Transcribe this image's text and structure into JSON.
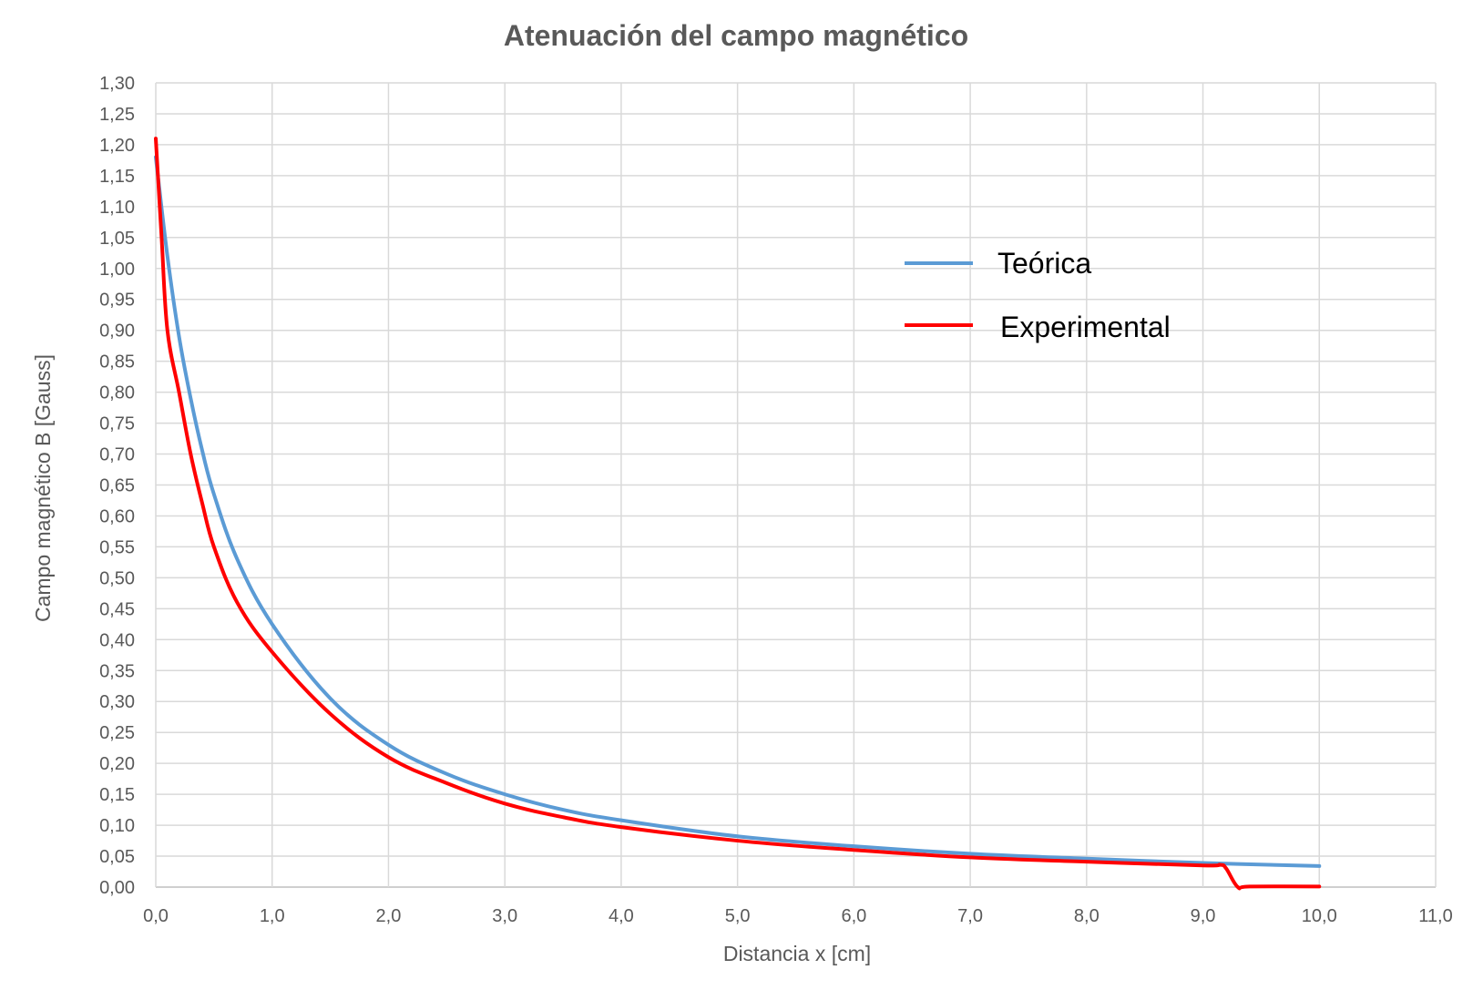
{
  "chart_data": {
    "type": "line",
    "title": "Atenuación del campo magnético",
    "xlabel": "Distancia x [cm]",
    "ylabel": "Campo magnético B [Gauss]",
    "xlim": [
      0,
      11
    ],
    "ylim": [
      0,
      1.3
    ],
    "x_ticks": [
      "0,0",
      "1,0",
      "2,0",
      "3,0",
      "4,0",
      "5,0",
      "6,0",
      "7,0",
      "8,0",
      "9,0",
      "10,0",
      "11,0"
    ],
    "y_ticks": [
      "0,00",
      "0,05",
      "0,10",
      "0,15",
      "0,20",
      "0,25",
      "0,30",
      "0,35",
      "0,40",
      "0,45",
      "0,50",
      "0,55",
      "0,60",
      "0,65",
      "0,70",
      "0,75",
      "0,80",
      "0,85",
      "0,90",
      "0,95",
      "1,00",
      "1,05",
      "1,10",
      "1,15",
      "1,20",
      "1,25",
      "1,30"
    ],
    "grid": true,
    "legend_position": "top-right",
    "series": [
      {
        "name": "Teórica",
        "color": "#5b9bd5",
        "x": [
          0.0,
          0.1,
          0.2,
          0.3,
          0.4,
          0.5,
          0.7,
          1.0,
          1.5,
          2.0,
          2.5,
          3.0,
          3.5,
          4.0,
          5.0,
          6.0,
          7.0,
          8.0,
          9.0,
          10.0
        ],
        "y": [
          1.18,
          1.02,
          0.89,
          0.79,
          0.705,
          0.635,
          0.53,
          0.425,
          0.305,
          0.23,
          0.183,
          0.15,
          0.125,
          0.108,
          0.082,
          0.066,
          0.054,
          0.046,
          0.039,
          0.034
        ]
      },
      {
        "name": "Experimental",
        "color": "#ff0000",
        "x": [
          0.0,
          0.05,
          0.1,
          0.2,
          0.3,
          0.4,
          0.5,
          0.7,
          1.0,
          1.5,
          2.0,
          2.5,
          3.0,
          3.5,
          4.0,
          5.0,
          6.0,
          7.0,
          8.0,
          9.0,
          9.15,
          9.2,
          9.3,
          9.4,
          10.0
        ],
        "y": [
          1.21,
          1.05,
          0.9,
          0.8,
          0.7,
          0.62,
          0.55,
          0.46,
          0.38,
          0.28,
          0.21,
          0.168,
          0.135,
          0.113,
          0.097,
          0.075,
          0.06,
          0.048,
          0.041,
          0.035,
          0.036,
          0.03,
          0.0,
          0.001,
          0.001
        ]
      }
    ]
  }
}
